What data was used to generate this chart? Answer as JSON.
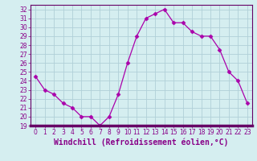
{
  "x": [
    0,
    1,
    2,
    3,
    4,
    5,
    6,
    7,
    8,
    9,
    10,
    11,
    12,
    13,
    14,
    15,
    16,
    17,
    18,
    19,
    20,
    21,
    22,
    23
  ],
  "y": [
    24.5,
    23.0,
    22.5,
    21.5,
    21.0,
    20.0,
    20.0,
    19.0,
    20.0,
    22.5,
    26.0,
    29.0,
    31.0,
    31.5,
    32.0,
    30.5,
    30.5,
    29.5,
    29.0,
    29.0,
    27.5,
    25.0,
    24.0,
    21.5
  ],
  "line_color": "#aa00aa",
  "marker": "D",
  "marker_size": 2.5,
  "bg_color": "#d5eef0",
  "grid_color": "#b0d0d8",
  "xlabel": "Windchill (Refroidissement éolien,°C)",
  "ylim": [
    19,
    32.5
  ],
  "xlim": [
    -0.5,
    23.5
  ],
  "yticks": [
    19,
    20,
    21,
    22,
    23,
    24,
    25,
    26,
    27,
    28,
    29,
    30,
    31,
    32
  ],
  "xticks": [
    0,
    1,
    2,
    3,
    4,
    5,
    6,
    7,
    8,
    9,
    10,
    11,
    12,
    13,
    14,
    15,
    16,
    17,
    18,
    19,
    20,
    21,
    22,
    23
  ],
  "tick_fontsize": 5.5,
  "xlabel_fontsize": 7.0,
  "label_color": "#880088",
  "spine_color": "#660066",
  "bottom_bar_color": "#660066"
}
